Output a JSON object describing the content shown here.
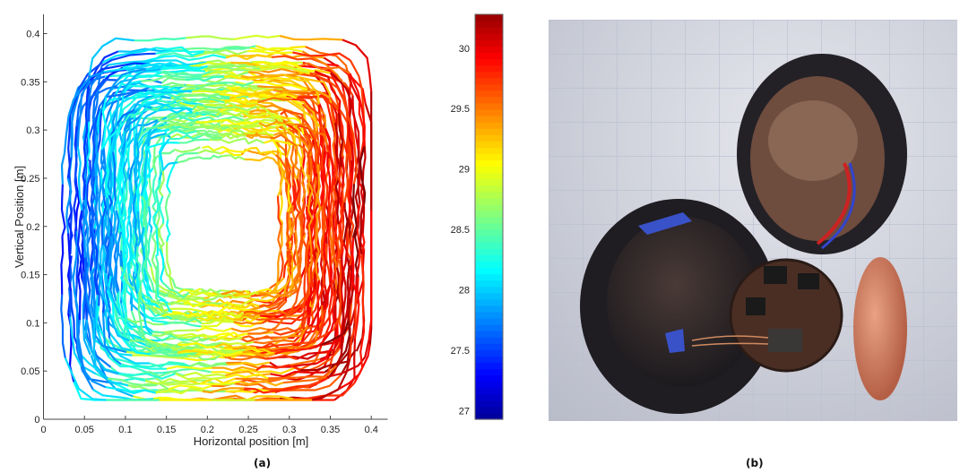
{
  "captions": {
    "a": "(a)",
    "b": "(b)"
  },
  "chart_data": {
    "type": "line",
    "title": "",
    "xlabel": "Horizontal position [m]",
    "ylabel": "Vertical Position [m]",
    "xlim": [
      0,
      0.42
    ],
    "ylim": [
      0,
      0.42
    ],
    "xticks": [
      "0",
      "0.05",
      "0.1",
      "0.15",
      "0.2",
      "0.25",
      "0.3",
      "0.35",
      "0.4"
    ],
    "xtick_values": [
      0,
      0.05,
      0.1,
      0.15,
      0.2,
      0.25,
      0.3,
      0.35,
      0.4
    ],
    "yticks": [
      "0",
      "0.05",
      "0.1",
      "0.15",
      "0.2",
      "0.25",
      "0.3",
      "0.35",
      "0.4"
    ],
    "ytick_values": [
      0,
      0.05,
      0.1,
      0.15,
      0.2,
      0.25,
      0.3,
      0.35,
      0.4
    ],
    "grid": false,
    "description_series": "Particle trajectory circulating clockwise in a square cell, colored by temperature",
    "colorbar": {
      "range": [
        26.93,
        30.28
      ],
      "ticks": [
        "27",
        "27.5",
        "28",
        "28.5",
        "29",
        "29.5",
        "30"
      ],
      "tick_values": [
        27,
        27.5,
        28,
        28.5,
        29,
        29.5,
        30
      ],
      "colormap": "jet"
    }
  },
  "photo": {
    "subject": "opened spherical sensor capsule with circuit board on grid paper"
  }
}
